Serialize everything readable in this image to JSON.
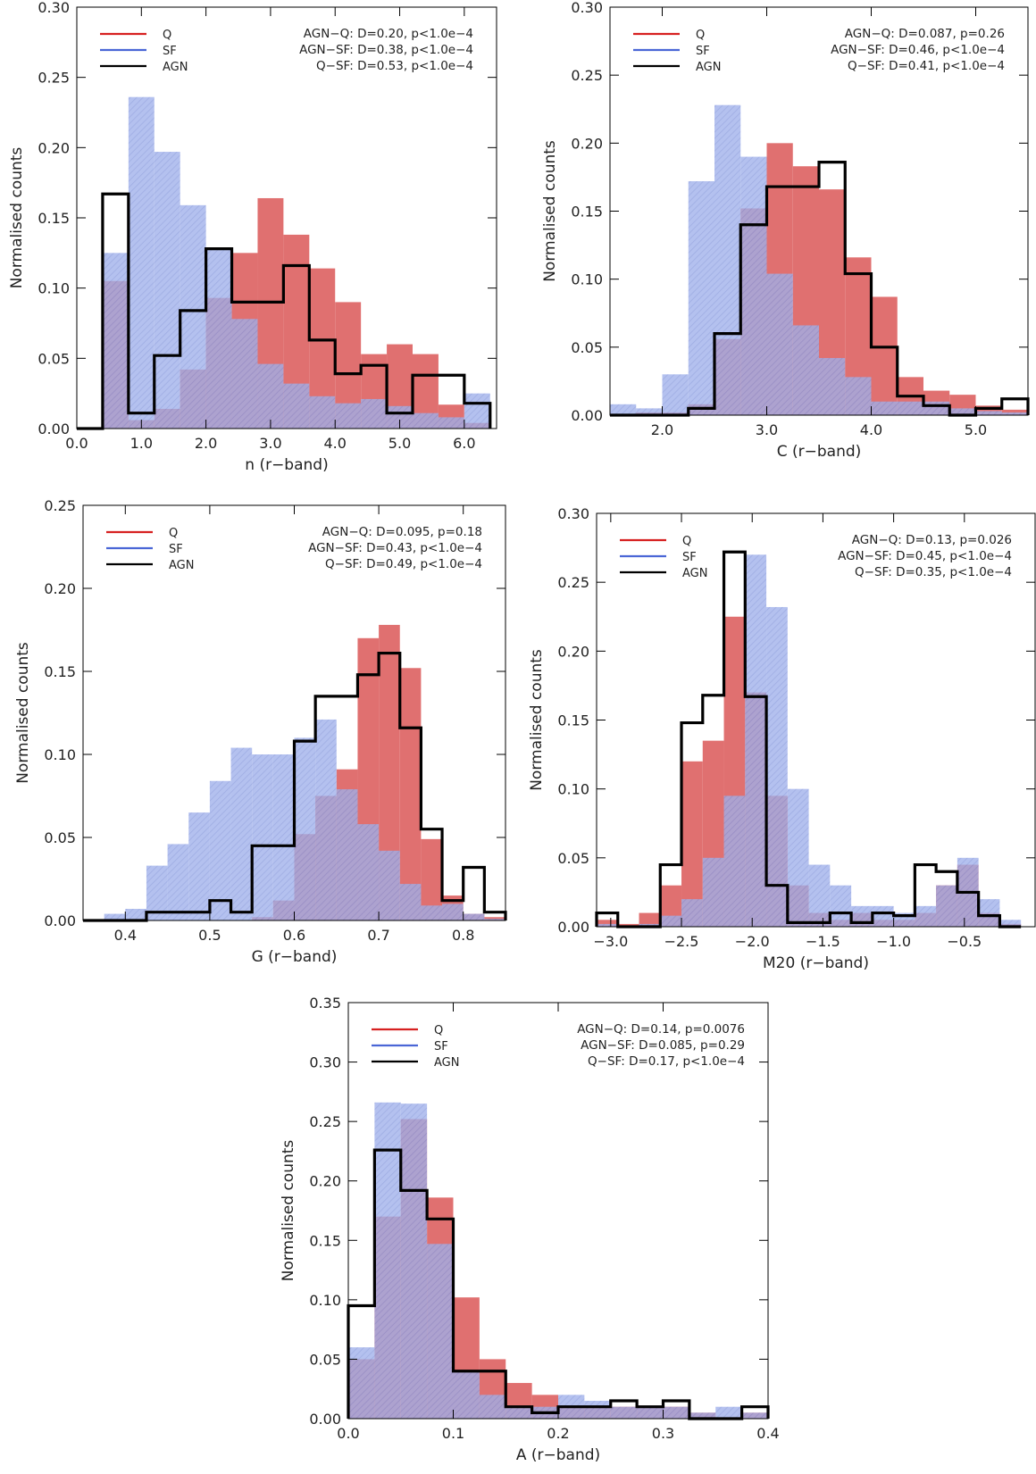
{
  "colors": {
    "Q": "#e07070",
    "SF": "#8ea0e4",
    "AGN": "#000000",
    "Q_line": "#d62020",
    "SF_line": "#4a66d6"
  },
  "legend": [
    "Q",
    "SF",
    "AGN"
  ],
  "chart_data": [
    {
      "type": "histogram",
      "xlabel": "n (r−band)",
      "ylabel": "Normalised counts",
      "xlim": [
        0.0,
        6.5
      ],
      "ylim": [
        0.0,
        0.3
      ],
      "xticks": [
        0.0,
        1.0,
        2.0,
        3.0,
        4.0,
        5.0,
        6.0
      ],
      "xtick_labels": [
        "0.0",
        "1.0",
        "2.0",
        "3.0",
        "4.0",
        "5.0",
        "6.0"
      ],
      "yticks": [
        0.0,
        0.05,
        0.1,
        0.15,
        0.2,
        0.25,
        0.3
      ],
      "ytick_labels": [
        "0.00",
        "0.05",
        "0.10",
        "0.15",
        "0.20",
        "0.25",
        "0.30"
      ],
      "bin_edges": [
        0.0,
        0.4,
        0.8,
        1.2,
        1.6,
        2.0,
        2.4,
        2.8,
        3.2,
        3.6,
        4.0,
        4.4,
        4.8,
        5.2,
        5.6,
        6.0,
        6.4
      ],
      "series": [
        {
          "name": "Q",
          "values": [
            0.0,
            0.105,
            0.006,
            0.014,
            0.042,
            0.093,
            0.125,
            0.164,
            0.138,
            0.114,
            0.09,
            0.053,
            0.06,
            0.053,
            0.017,
            0.004
          ]
        },
        {
          "name": "SF",
          "values": [
            0.0,
            0.125,
            0.236,
            0.197,
            0.159,
            0.128,
            0.078,
            0.046,
            0.032,
            0.023,
            0.018,
            0.021,
            0.016,
            0.011,
            0.008,
            0.025
          ]
        },
        {
          "name": "AGN",
          "values": [
            0.0,
            0.167,
            0.011,
            0.052,
            0.084,
            0.128,
            0.09,
            0.09,
            0.116,
            0.063,
            0.039,
            0.045,
            0.011,
            0.038,
            0.038,
            0.018
          ]
        }
      ],
      "annotations": [
        "AGN−Q: D=0.20, p<1.0e−4",
        "AGN−SF: D=0.38, p<1.0e−4",
        "Q−SF: D=0.53, p<1.0e−4"
      ]
    },
    {
      "type": "histogram",
      "xlabel": "C (r−band)",
      "ylabel": "Normalised counts",
      "xlim": [
        1.5,
        5.5
      ],
      "ylim": [
        0.0,
        0.3
      ],
      "xticks": [
        2.0,
        3.0,
        4.0,
        5.0
      ],
      "xtick_labels": [
        "2.0",
        "3.0",
        "4.0",
        "5.0"
      ],
      "yticks": [
        0.0,
        0.05,
        0.1,
        0.15,
        0.2,
        0.25,
        0.3
      ],
      "ytick_labels": [
        "0.00",
        "0.05",
        "0.10",
        "0.15",
        "0.20",
        "0.25",
        "0.30"
      ],
      "bin_edges": [
        1.5,
        1.75,
        2.0,
        2.25,
        2.5,
        2.75,
        3.0,
        3.25,
        3.5,
        3.75,
        4.0,
        4.25,
        4.5,
        4.75,
        5.0,
        5.25,
        5.5
      ],
      "series": [
        {
          "name": "Q",
          "values": [
            0.0,
            0.002,
            0.002,
            0.008,
            0.056,
            0.152,
            0.2,
            0.183,
            0.166,
            0.116,
            0.087,
            0.028,
            0.018,
            0.015,
            0.007,
            0.004
          ]
        },
        {
          "name": "SF",
          "values": [
            0.008,
            0.005,
            0.03,
            0.172,
            0.228,
            0.19,
            0.104,
            0.066,
            0.042,
            0.028,
            0.01,
            0.01,
            0.01,
            0.005,
            0.003,
            0.002
          ]
        },
        {
          "name": "AGN",
          "values": [
            0.0,
            0.0,
            0.0,
            0.005,
            0.06,
            0.14,
            0.168,
            0.168,
            0.186,
            0.104,
            0.05,
            0.014,
            0.007,
            0.0,
            0.005,
            0.012
          ]
        }
      ],
      "annotations": [
        "AGN−Q: D=0.087, p=0.26",
        "AGN−SF: D=0.46, p<1.0e−4",
        "Q−SF: D=0.41, p<1.0e−4"
      ]
    },
    {
      "type": "histogram",
      "xlabel": "G (r−band)",
      "ylabel": "Normalised counts",
      "xlim": [
        0.35,
        0.85
      ],
      "ylim": [
        0.0,
        0.25
      ],
      "xticks": [
        0.4,
        0.5,
        0.6,
        0.7,
        0.8
      ],
      "xtick_labels": [
        "0.4",
        "0.5",
        "0.6",
        "0.7",
        "0.8"
      ],
      "yticks": [
        0.0,
        0.05,
        0.1,
        0.15,
        0.2,
        0.25
      ],
      "ytick_labels": [
        "0.00",
        "0.05",
        "0.10",
        "0.15",
        "0.20",
        "0.25"
      ],
      "bin_edges": [
        0.35,
        0.375,
        0.4,
        0.425,
        0.45,
        0.475,
        0.5,
        0.525,
        0.55,
        0.575,
        0.6,
        0.625,
        0.65,
        0.675,
        0.7,
        0.725,
        0.75,
        0.775,
        0.8,
        0.825,
        0.85
      ],
      "series": [
        {
          "name": "Q",
          "values": [
            0.0,
            0.0,
            0.0,
            0.0,
            0.0,
            0.0,
            0.0,
            0.0,
            0.002,
            0.012,
            0.052,
            0.075,
            0.091,
            0.17,
            0.178,
            0.152,
            0.049,
            0.015,
            0.004,
            0.002
          ]
        },
        {
          "name": "SF",
          "values": [
            0.0,
            0.004,
            0.007,
            0.033,
            0.046,
            0.065,
            0.084,
            0.104,
            0.1,
            0.1,
            0.11,
            0.121,
            0.079,
            0.058,
            0.042,
            0.022,
            0.009,
            0.01,
            0.004,
            0.001
          ]
        },
        {
          "name": "AGN",
          "values": [
            0.0,
            0.0,
            0.0,
            0.005,
            0.005,
            0.005,
            0.012,
            0.005,
            0.045,
            0.045,
            0.108,
            0.135,
            0.135,
            0.148,
            0.161,
            0.116,
            0.055,
            0.012,
            0.032,
            0.005
          ]
        }
      ],
      "annotations": [
        "AGN−Q: D=0.095, p=0.18",
        "AGN−SF: D=0.43, p<1.0e−4",
        "Q−SF: D=0.49, p<1.0e−4"
      ]
    },
    {
      "type": "histogram",
      "xlabel": "M20 (r−band)",
      "ylabel": "Normalised counts",
      "xlim": [
        -3.1,
        0.0
      ],
      "ylim": [
        0.0,
        0.3
      ],
      "xticks": [
        -3.0,
        -2.5,
        -2.0,
        -1.5,
        -1.0,
        -0.5
      ],
      "xtick_labels": [
        "−3.0",
        "−2.5",
        "−2.0",
        "−1.5",
        "−1.0",
        "−0.5"
      ],
      "yticks": [
        0.0,
        0.05,
        0.1,
        0.15,
        0.2,
        0.25,
        0.3
      ],
      "ytick_labels": [
        "0.00",
        "0.05",
        "0.10",
        "0.15",
        "0.20",
        "0.25",
        "0.30"
      ],
      "bin_edges": [
        -3.1,
        -2.95,
        -2.8,
        -2.65,
        -2.5,
        -2.35,
        -2.2,
        -2.05,
        -1.9,
        -1.75,
        -1.6,
        -1.45,
        -1.3,
        -1.15,
        -1.0,
        -0.85,
        -0.7,
        -0.55,
        -0.4,
        -0.25,
        -0.1
      ],
      "series": [
        {
          "name": "Q",
          "values": [
            0.005,
            0.002,
            0.01,
            0.03,
            0.12,
            0.135,
            0.225,
            0.17,
            0.095,
            0.03,
            0.01,
            0.005,
            0.01,
            0.005,
            0.005,
            0.01,
            0.03,
            0.045,
            0.01,
            0.002
          ]
        },
        {
          "name": "SF",
          "values": [
            0.002,
            0.0,
            0.002,
            0.008,
            0.02,
            0.05,
            0.095,
            0.27,
            0.232,
            0.1,
            0.045,
            0.03,
            0.015,
            0.015,
            0.01,
            0.015,
            0.03,
            0.05,
            0.02,
            0.005
          ]
        },
        {
          "name": "AGN",
          "values": [
            0.01,
            0.0,
            0.0,
            0.045,
            0.148,
            0.168,
            0.272,
            0.167,
            0.03,
            0.003,
            0.003,
            0.01,
            0.003,
            0.01,
            0.008,
            0.045,
            0.04,
            0.025,
            0.008,
            0.0
          ]
        }
      ],
      "annotations": [
        "AGN−Q: D=0.13, p=0.026",
        "AGN−SF: D=0.45, p<1.0e−4",
        "Q−SF: D=0.35, p<1.0e−4"
      ]
    },
    {
      "type": "histogram",
      "xlabel": "A (r−band)",
      "ylabel": "Normalised counts",
      "xlim": [
        0.0,
        0.4
      ],
      "ylim": [
        0.0,
        0.35
      ],
      "xticks": [
        0.0,
        0.1,
        0.2,
        0.3,
        0.4
      ],
      "xtick_labels": [
        "0.0",
        "0.1",
        "0.2",
        "0.3",
        "0.4"
      ],
      "yticks": [
        0.0,
        0.05,
        0.1,
        0.15,
        0.2,
        0.25,
        0.3,
        0.35
      ],
      "ytick_labels": [
        "0.00",
        "0.05",
        "0.10",
        "0.15",
        "0.20",
        "0.25",
        "0.30",
        "0.35"
      ],
      "bin_edges": [
        0.0,
        0.025,
        0.05,
        0.075,
        0.1,
        0.125,
        0.15,
        0.175,
        0.2,
        0.225,
        0.25,
        0.275,
        0.3,
        0.325,
        0.35,
        0.375,
        0.4
      ],
      "series": [
        {
          "name": "Q",
          "values": [
            0.05,
            0.17,
            0.252,
            0.186,
            0.102,
            0.05,
            0.03,
            0.02,
            0.01,
            0.01,
            0.01,
            0.01,
            0.01,
            0.005,
            0.0,
            0.005
          ]
        },
        {
          "name": "SF",
          "values": [
            0.06,
            0.266,
            0.265,
            0.147,
            0.04,
            0.02,
            0.01,
            0.01,
            0.02,
            0.015,
            0.01,
            0.01,
            0.01,
            0.005,
            0.01,
            0.005
          ]
        },
        {
          "name": "AGN",
          "values": [
            0.095,
            0.226,
            0.192,
            0.168,
            0.04,
            0.04,
            0.01,
            0.005,
            0.01,
            0.01,
            0.015,
            0.01,
            0.015,
            0.0,
            0.0,
            0.01
          ]
        }
      ],
      "annotations": [
        "AGN−Q: D=0.14, p=0.0076",
        "AGN−SF: D=0.085, p=0.29",
        "Q−SF: D=0.17, p<1.0e−4"
      ]
    }
  ]
}
